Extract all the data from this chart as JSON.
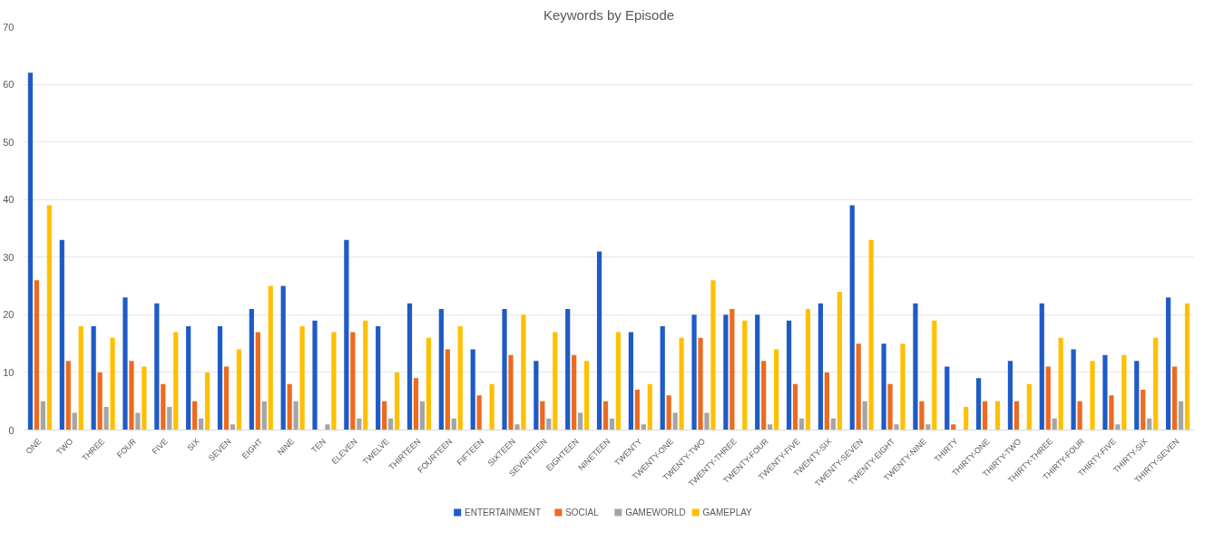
{
  "chart_data": {
    "type": "bar",
    "title": "Keywords by Episode",
    "categories": [
      "ONE",
      "TWO",
      "THREE",
      "FOUR",
      "FIVE",
      "SIX",
      "SEVEN",
      "EIGHT",
      "NINE",
      "TEN",
      "ELEVEN",
      "TWELVE",
      "THIRTEEN",
      "FOURTEEN",
      "FIFTEEN",
      "SIXTEEN",
      "SEVENTEEN",
      "EIGHTEEN",
      "NINETEEN",
      "TWENTY",
      "TWENTY-ONE",
      "TWENTY-TWO",
      "TWENTY-THREE",
      "TWENTY-FOUR",
      "TWENTY-FIVE",
      "TWENTY-SIX",
      "TWENTY-SEVEN",
      "TWENTY-EIGHT",
      "TWENTY-NINE",
      "THIRTY",
      "THIRTY-ONE",
      "THIRTY-TWO",
      "THIRTY-THREE",
      "THIRTY-FOUR",
      "THIRTY-FIVE",
      "THIRTY-SIX",
      "THIRTY-SEVEN"
    ],
    "series": [
      {
        "name": "ENTERTAINMENT",
        "color": "#1f5bc6",
        "values": [
          62,
          33,
          18,
          23,
          22,
          18,
          18,
          21,
          25,
          19,
          33,
          18,
          22,
          21,
          14,
          21,
          12,
          21,
          31,
          17,
          18,
          20,
          20,
          20,
          19,
          22,
          39,
          15,
          22,
          11,
          9,
          12,
          22,
          14,
          13,
          12,
          23
        ]
      },
      {
        "name": "SOCIAL",
        "color": "#ed6a1f",
        "values": [
          26,
          12,
          10,
          12,
          8,
          5,
          11,
          17,
          8,
          0,
          17,
          5,
          9,
          14,
          6,
          13,
          5,
          13,
          5,
          7,
          6,
          16,
          21,
          12,
          8,
          10,
          15,
          8,
          5,
          1,
          5,
          5,
          11,
          5,
          6,
          7,
          11
        ]
      },
      {
        "name": "GAMEWORLD",
        "color": "#a5a5a5",
        "values": [
          5,
          3,
          4,
          3,
          4,
          2,
          1,
          5,
          5,
          1,
          2,
          2,
          5,
          2,
          0,
          1,
          2,
          3,
          2,
          1,
          3,
          3,
          0,
          1,
          2,
          2,
          5,
          1,
          1,
          0,
          0,
          0,
          2,
          0,
          1,
          2,
          5
        ]
      },
      {
        "name": "GAMEPLAY",
        "color": "#ffc000",
        "values": [
          39,
          18,
          16,
          11,
          17,
          10,
          14,
          25,
          18,
          17,
          19,
          10,
          16,
          18,
          8,
          20,
          17,
          12,
          17,
          8,
          16,
          26,
          19,
          14,
          21,
          24,
          33,
          15,
          19,
          4,
          5,
          8,
          16,
          12,
          13,
          16,
          22
        ]
      }
    ],
    "ylim": [
      0,
      70
    ],
    "yticks": [
      0,
      10,
      20,
      30,
      40,
      50,
      60,
      70
    ],
    "grid": "y",
    "legend": "bottom"
  }
}
